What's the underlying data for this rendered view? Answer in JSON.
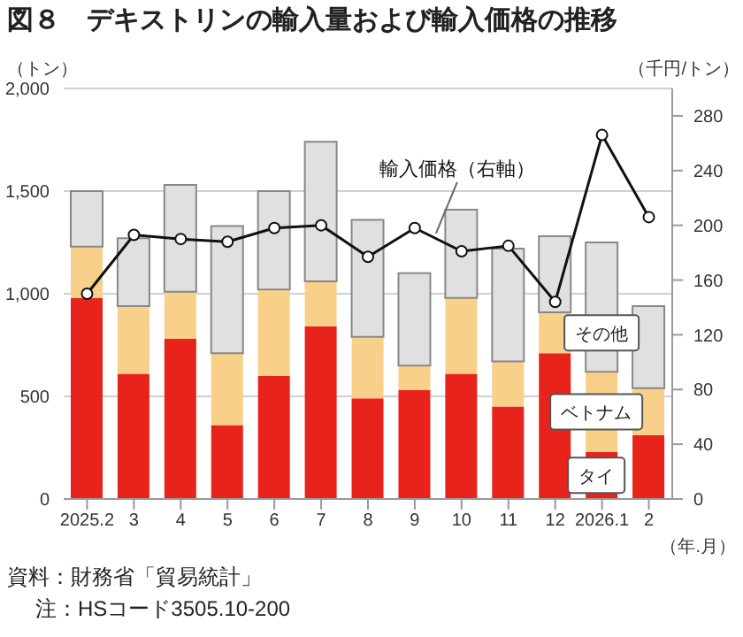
{
  "chart_data": {
    "type": "bar",
    "title": "図８　デキストリンの輸入量および輸入価格の推移",
    "ylabel": "（トン）",
    "y2label": "（千円/トン）",
    "xlabel": "（年.月）",
    "categories": [
      "2025.2",
      "3",
      "4",
      "5",
      "6",
      "7",
      "8",
      "9",
      "10",
      "11",
      "12",
      "2026.1",
      "2"
    ],
    "stacked": true,
    "grid": "y",
    "marker": "circle",
    "ylim": [
      0,
      2000
    ],
    "yticks": [
      {
        "value": 0,
        "label": "0"
      },
      {
        "value": 500,
        "label": "500"
      },
      {
        "value": 1000,
        "label": "1,000"
      },
      {
        "value": 1500,
        "label": "1,500"
      },
      {
        "value": 2000,
        "label": "2,000"
      }
    ],
    "y2lim": [
      0,
      300
    ],
    "y2ticks": [
      0,
      40,
      80,
      120,
      160,
      200,
      240,
      280
    ],
    "series": [
      {
        "name": "タイ",
        "color": "#e8231b",
        "values": [
          980,
          610,
          780,
          360,
          600,
          840,
          490,
          530,
          610,
          450,
          710,
          230,
          310
        ]
      },
      {
        "name": "ベトナム",
        "color": "#f9d08a",
        "values": [
          250,
          330,
          230,
          350,
          420,
          220,
          300,
          120,
          370,
          220,
          200,
          390,
          230
        ]
      },
      {
        "name": "その他",
        "color": "#e0e0e0",
        "values": [
          270,
          330,
          520,
          620,
          480,
          680,
          570,
          450,
          430,
          550,
          370,
          630,
          400
        ]
      },
      {
        "name": "輸入価格（右軸）",
        "type": "line",
        "axis": "y2",
        "color": "#111111",
        "values": [
          150,
          193,
          190,
          188,
          198,
          200,
          177,
          198,
          181,
          185,
          144,
          266,
          206
        ]
      }
    ],
    "annotations": [
      "資料：財務省「貿易統計」",
      "注：HSコード3505.10-200"
    ]
  }
}
